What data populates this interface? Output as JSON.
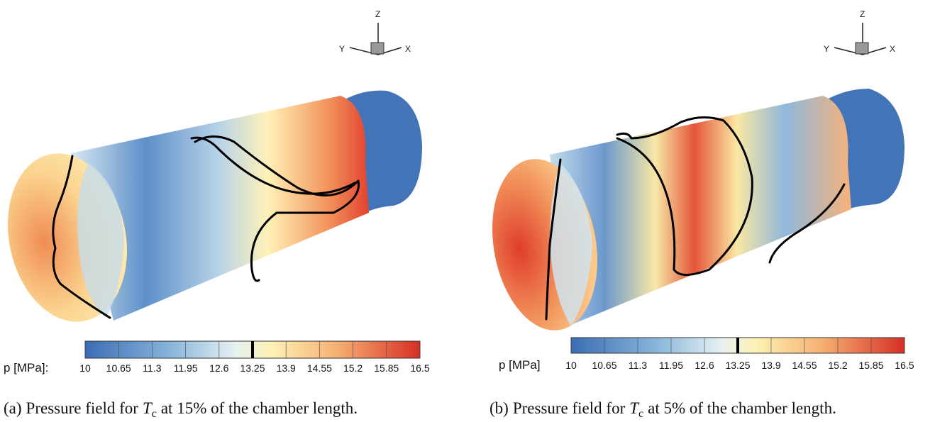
{
  "panels": [
    {
      "triad": {
        "z": "Z",
        "y": "Y",
        "x": "X"
      },
      "colorbar": {
        "label": "p [MPa]:",
        "ticks": [
          10,
          10.65,
          11.3,
          11.95,
          12.6,
          13.25,
          13.9,
          14.55,
          15.2,
          15.85,
          16.5
        ],
        "marker": 13.25
      },
      "caption": {
        "tag": "(a)",
        "before": "Pressure field for",
        "symbol": "T",
        "subscript": "c",
        "after": "at 15% of the chamber length."
      }
    },
    {
      "triad": {
        "z": "Z",
        "y": "Y",
        "x": "X"
      },
      "colorbar": {
        "label": "p [MPa]",
        "ticks": [
          10,
          10.65,
          11.3,
          11.95,
          12.6,
          13.25,
          13.9,
          14.55,
          15.2,
          15.85,
          16.5
        ],
        "marker": 13.25
      },
      "caption": {
        "tag": "(b)",
        "before": "Pressure field for",
        "symbol": "T",
        "subscript": "c",
        "after": "at 5% of the chamber length."
      }
    }
  ]
}
